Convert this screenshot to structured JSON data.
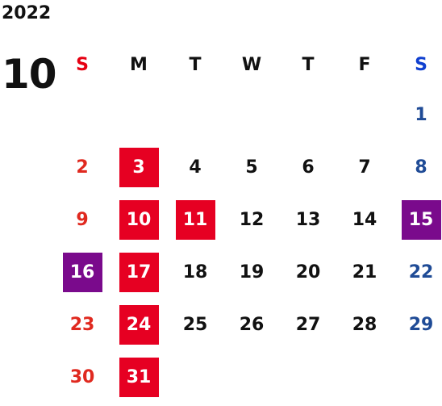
{
  "year": "2022",
  "month": "10",
  "weekdays": [
    "S",
    "M",
    "T",
    "W",
    "T",
    "F",
    "S"
  ],
  "colors": {
    "sunday": "#e0291f",
    "saturday": "#1f4b96",
    "holiday_box": "#e60022",
    "special_box": "#7a0a8c",
    "text": "#111111"
  },
  "weeks": [
    [
      {
        "d": ""
      },
      {
        "d": ""
      },
      {
        "d": ""
      },
      {
        "d": ""
      },
      {
        "d": ""
      },
      {
        "d": ""
      },
      {
        "d": "1"
      }
    ],
    [
      {
        "d": "2"
      },
      {
        "d": "3",
        "mark": "red"
      },
      {
        "d": "4"
      },
      {
        "d": "5"
      },
      {
        "d": "6"
      },
      {
        "d": "7"
      },
      {
        "d": "8"
      }
    ],
    [
      {
        "d": "9"
      },
      {
        "d": "10",
        "mark": "red"
      },
      {
        "d": "11",
        "mark": "red"
      },
      {
        "d": "12"
      },
      {
        "d": "13"
      },
      {
        "d": "14"
      },
      {
        "d": "15",
        "mark": "purple"
      }
    ],
    [
      {
        "d": "16",
        "mark": "purple"
      },
      {
        "d": "17",
        "mark": "red"
      },
      {
        "d": "18"
      },
      {
        "d": "19"
      },
      {
        "d": "20"
      },
      {
        "d": "21"
      },
      {
        "d": "22"
      }
    ],
    [
      {
        "d": "23"
      },
      {
        "d": "24",
        "mark": "red"
      },
      {
        "d": "25"
      },
      {
        "d": "26"
      },
      {
        "d": "27"
      },
      {
        "d": "28"
      },
      {
        "d": "29"
      }
    ],
    [
      {
        "d": "30"
      },
      {
        "d": "31",
        "mark": "red"
      },
      {
        "d": ""
      },
      {
        "d": ""
      },
      {
        "d": ""
      },
      {
        "d": ""
      },
      {
        "d": ""
      }
    ]
  ]
}
